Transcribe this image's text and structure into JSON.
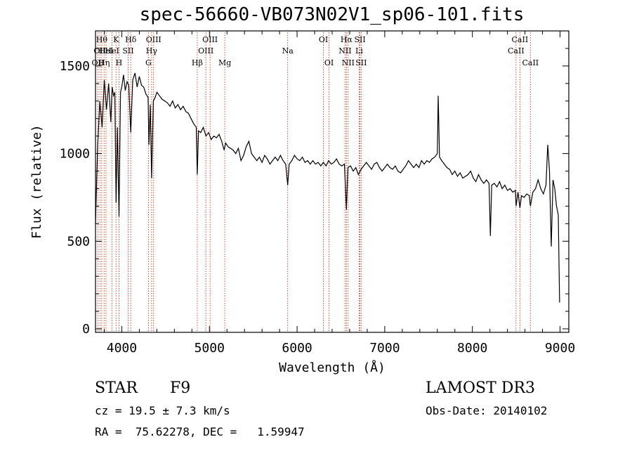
{
  "title": "spec-56660-VB073N02V1_sp06-101.fits",
  "info": {
    "class": "STAR",
    "subclass": "F9",
    "survey": "LAMOST DR3",
    "cz": "cz = 19.5 ± 7.3 km/s",
    "obs_date": "Obs-Date: 20140102",
    "coords": "RA =  75.62278, DEC =   1.59947"
  },
  "colors": {
    "spectrum": "#000000",
    "line_markers": "#cc2200",
    "axes": "#000000"
  },
  "chart_data": {
    "type": "line",
    "title": "spec-56660-VB073N02V1_sp06-101.fits",
    "xlabel": "Wavelength (Å)",
    "ylabel": "Flux (relative)",
    "xlim": [
      3700,
      9100
    ],
    "ylim": [
      -20,
      1700
    ],
    "xticks": [
      4000,
      5000,
      6000,
      7000,
      8000,
      9000
    ],
    "xtick_labels": [
      "4000",
      "5000",
      "6000",
      "7000",
      "8000",
      "9000"
    ],
    "yticks": [
      0,
      500,
      1000,
      1500
    ],
    "ytick_labels": [
      "0",
      "500",
      "1000",
      "1500"
    ],
    "grid": false,
    "spectrum_points": [
      [
        3700,
        600
      ],
      [
        3725,
        1050
      ],
      [
        3750,
        1300
      ],
      [
        3775,
        1150
      ],
      [
        3800,
        1420
      ],
      [
        3825,
        1250
      ],
      [
        3850,
        1400
      ],
      [
        3875,
        1180
      ],
      [
        3890,
        1380
      ],
      [
        3905,
        1330
      ],
      [
        3920,
        1350
      ],
      [
        3935,
        720
      ],
      [
        3950,
        1150
      ],
      [
        3968,
        640
      ],
      [
        3985,
        1350
      ],
      [
        4000,
        1380
      ],
      [
        4020,
        1450
      ],
      [
        4040,
        1360
      ],
      [
        4060,
        1410
      ],
      [
        4080,
        1390
      ],
      [
        4102,
        1120
      ],
      [
        4125,
        1420
      ],
      [
        4150,
        1460
      ],
      [
        4175,
        1380
      ],
      [
        4200,
        1440
      ],
      [
        4225,
        1390
      ],
      [
        4250,
        1380
      ],
      [
        4275,
        1340
      ],
      [
        4300,
        1320
      ],
      [
        4310,
        1050
      ],
      [
        4325,
        1280
      ],
      [
        4340,
        860
      ],
      [
        4360,
        1300
      ],
      [
        4380,
        1320
      ],
      [
        4400,
        1350
      ],
      [
        4430,
        1330
      ],
      [
        4460,
        1310
      ],
      [
        4490,
        1300
      ],
      [
        4520,
        1290
      ],
      [
        4550,
        1270
      ],
      [
        4580,
        1300
      ],
      [
        4610,
        1260
      ],
      [
        4640,
        1280
      ],
      [
        4670,
        1250
      ],
      [
        4700,
        1270
      ],
      [
        4730,
        1240
      ],
      [
        4760,
        1230
      ],
      [
        4790,
        1200
      ],
      [
        4820,
        1170
      ],
      [
        4850,
        1150
      ],
      [
        4861,
        880
      ],
      [
        4875,
        1130
      ],
      [
        4900,
        1120
      ],
      [
        4930,
        1150
      ],
      [
        4960,
        1100
      ],
      [
        4990,
        1120
      ],
      [
        5020,
        1080
      ],
      [
        5050,
        1100
      ],
      [
        5080,
        1090
      ],
      [
        5110,
        1110
      ],
      [
        5140,
        1070
      ],
      [
        5167,
        1020
      ],
      [
        5185,
        1060
      ],
      [
        5210,
        1040
      ],
      [
        5240,
        1030
      ],
      [
        5270,
        1020
      ],
      [
        5300,
        1000
      ],
      [
        5330,
        1030
      ],
      [
        5360,
        960
      ],
      [
        5390,
        990
      ],
      [
        5420,
        1040
      ],
      [
        5450,
        1070
      ],
      [
        5480,
        1000
      ],
      [
        5510,
        980
      ],
      [
        5540,
        960
      ],
      [
        5570,
        980
      ],
      [
        5600,
        950
      ],
      [
        5630,
        990
      ],
      [
        5660,
        970
      ],
      [
        5690,
        940
      ],
      [
        5720,
        960
      ],
      [
        5750,
        980
      ],
      [
        5780,
        960
      ],
      [
        5810,
        990
      ],
      [
        5840,
        960
      ],
      [
        5870,
        940
      ],
      [
        5893,
        820
      ],
      [
        5910,
        940
      ],
      [
        5940,
        960
      ],
      [
        5970,
        990
      ],
      [
        6000,
        970
      ],
      [
        6030,
        960
      ],
      [
        6060,
        980
      ],
      [
        6090,
        950
      ],
      [
        6120,
        960
      ],
      [
        6150,
        940
      ],
      [
        6180,
        960
      ],
      [
        6210,
        940
      ],
      [
        6240,
        950
      ],
      [
        6270,
        930
      ],
      [
        6300,
        950
      ],
      [
        6330,
        930
      ],
      [
        6360,
        960
      ],
      [
        6390,
        940
      ],
      [
        6420,
        950
      ],
      [
        6450,
        970
      ],
      [
        6480,
        940
      ],
      [
        6510,
        930
      ],
      [
        6540,
        940
      ],
      [
        6563,
        680
      ],
      [
        6580,
        920
      ],
      [
        6610,
        930
      ],
      [
        6640,
        900
      ],
      [
        6670,
        920
      ],
      [
        6700,
        880
      ],
      [
        6730,
        910
      ],
      [
        6760,
        930
      ],
      [
        6790,
        950
      ],
      [
        6820,
        930
      ],
      [
        6850,
        910
      ],
      [
        6880,
        940
      ],
      [
        6910,
        950
      ],
      [
        6940,
        920
      ],
      [
        6970,
        900
      ],
      [
        7000,
        920
      ],
      [
        7030,
        940
      ],
      [
        7060,
        920
      ],
      [
        7090,
        910
      ],
      [
        7120,
        930
      ],
      [
        7150,
        900
      ],
      [
        7180,
        890
      ],
      [
        7210,
        910
      ],
      [
        7240,
        930
      ],
      [
        7270,
        960
      ],
      [
        7300,
        940
      ],
      [
        7330,
        920
      ],
      [
        7360,
        940
      ],
      [
        7390,
        920
      ],
      [
        7420,
        960
      ],
      [
        7450,
        940
      ],
      [
        7480,
        960
      ],
      [
        7510,
        950
      ],
      [
        7540,
        970
      ],
      [
        7570,
        980
      ],
      [
        7600,
        1000
      ],
      [
        7610,
        1330
      ],
      [
        7625,
        980
      ],
      [
        7650,
        960
      ],
      [
        7680,
        940
      ],
      [
        7710,
        920
      ],
      [
        7740,
        910
      ],
      [
        7770,
        880
      ],
      [
        7800,
        900
      ],
      [
        7830,
        870
      ],
      [
        7860,
        890
      ],
      [
        7890,
        860
      ],
      [
        7920,
        870
      ],
      [
        7950,
        880
      ],
      [
        7980,
        900
      ],
      [
        8010,
        860
      ],
      [
        8040,
        840
      ],
      [
        8070,
        880
      ],
      [
        8100,
        850
      ],
      [
        8130,
        830
      ],
      [
        8160,
        850
      ],
      [
        8190,
        830
      ],
      [
        8205,
        530
      ],
      [
        8220,
        820
      ],
      [
        8250,
        830
      ],
      [
        8280,
        810
      ],
      [
        8310,
        840
      ],
      [
        8340,
        800
      ],
      [
        8370,
        820
      ],
      [
        8400,
        790
      ],
      [
        8430,
        800
      ],
      [
        8460,
        780
      ],
      [
        8490,
        790
      ],
      [
        8498,
        700
      ],
      [
        8520,
        780
      ],
      [
        8542,
        690
      ],
      [
        8560,
        760
      ],
      [
        8590,
        750
      ],
      [
        8620,
        770
      ],
      [
        8650,
        760
      ],
      [
        8662,
        700
      ],
      [
        8690,
        780
      ],
      [
        8720,
        800
      ],
      [
        8750,
        850
      ],
      [
        8780,
        800
      ],
      [
        8810,
        770
      ],
      [
        8840,
        820
      ],
      [
        8860,
        1050
      ],
      [
        8880,
        900
      ],
      [
        8900,
        470
      ],
      [
        8920,
        850
      ],
      [
        8940,
        800
      ],
      [
        8960,
        700
      ],
      [
        8980,
        650
      ],
      [
        8995,
        150
      ]
    ],
    "line_markers": [
      {
        "wavelength": 3727,
        "label": "OII",
        "row": 2
      },
      {
        "wavelength": 3750,
        "label": "OII",
        "row": 1
      },
      {
        "wavelength": 3771,
        "label": "Hθ",
        "row": 0
      },
      {
        "wavelength": 3798,
        "label": "Hη",
        "row": 2
      },
      {
        "wavelength": 3820,
        "label": "HeI",
        "row": 1
      },
      {
        "wavelength": 3889,
        "label": "HeI",
        "row": 1
      },
      {
        "wavelength": 3934,
        "label": "K",
        "row": 0
      },
      {
        "wavelength": 3968,
        "label": "H",
        "row": 2
      },
      {
        "wavelength": 4072,
        "label": "SII",
        "row": 1
      },
      {
        "wavelength": 4102,
        "label": "Hδ",
        "row": 0
      },
      {
        "wavelength": 4304,
        "label": "G",
        "row": 2
      },
      {
        "wavelength": 4340,
        "label": "Hγ",
        "row": 1
      },
      {
        "wavelength": 4363,
        "label": "OIII",
        "row": 0
      },
      {
        "wavelength": 4861,
        "label": "Hβ",
        "row": 2
      },
      {
        "wavelength": 4959,
        "label": "OIII",
        "row": 1
      },
      {
        "wavelength": 5007,
        "label": "OIII",
        "row": 0
      },
      {
        "wavelength": 5175,
        "label": "Mg",
        "row": 2
      },
      {
        "wavelength": 5893,
        "label": "Na",
        "row": 1
      },
      {
        "wavelength": 6300,
        "label": "OI",
        "row": 0
      },
      {
        "wavelength": 6364,
        "label": "OI",
        "row": 2
      },
      {
        "wavelength": 6548,
        "label": "NII",
        "row": 1
      },
      {
        "wavelength": 6563,
        "label": "Hα",
        "row": 0
      },
      {
        "wavelength": 6583,
        "label": "NII",
        "row": 2
      },
      {
        "wavelength": 6708,
        "label": "Li",
        "row": 1
      },
      {
        "wavelength": 6717,
        "label": "SII",
        "row": 0
      },
      {
        "wavelength": 6731,
        "label": "SII",
        "row": 2
      },
      {
        "wavelength": 8498,
        "label": "CaII",
        "row": 1
      },
      {
        "wavelength": 8542,
        "label": "CaII",
        "row": 0
      },
      {
        "wavelength": 8662,
        "label": "CaII",
        "row": 2
      }
    ]
  }
}
